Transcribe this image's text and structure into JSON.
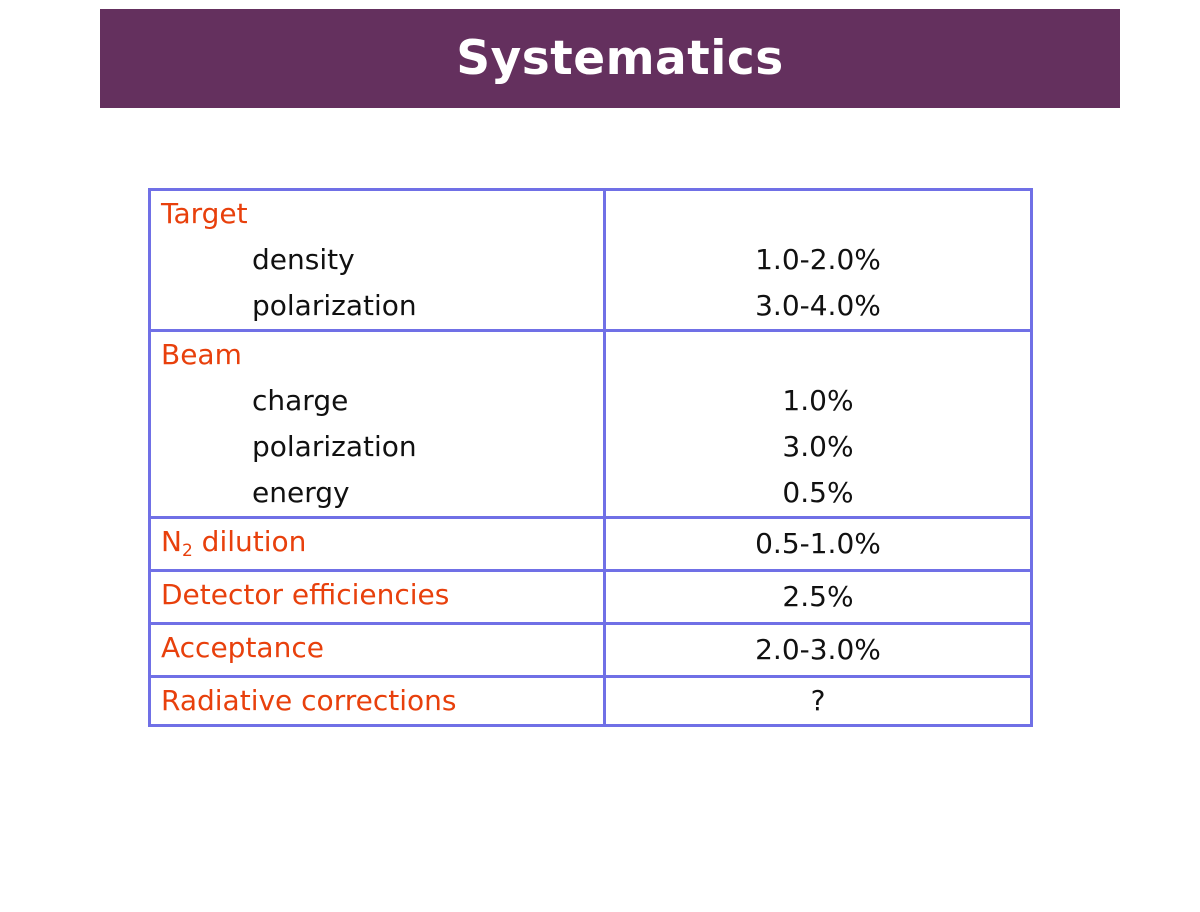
{
  "title": "Systematics",
  "groups": [
    {
      "category": "Target",
      "items": [
        {
          "label": "density",
          "value": "1.0-2.0%"
        },
        {
          "label": "polarization",
          "value": "3.0-4.0%"
        }
      ]
    },
    {
      "category": "Beam",
      "items": [
        {
          "label": "charge",
          "value": "1.0%"
        },
        {
          "label": "polarization",
          "value": "3.0%"
        },
        {
          "label": "energy",
          "value": "0.5%"
        }
      ]
    }
  ],
  "n2_row": {
    "prefix": "N",
    "subscript": "2",
    "suffix": " dilution",
    "value": "0.5-1.0%"
  },
  "rows": [
    {
      "label": "Detector efficiencies",
      "value": "2.5%"
    },
    {
      "label": "Acceptance",
      "value": "2.0-3.0%"
    },
    {
      "label": "Radiative corrections",
      "value": "?"
    }
  ]
}
